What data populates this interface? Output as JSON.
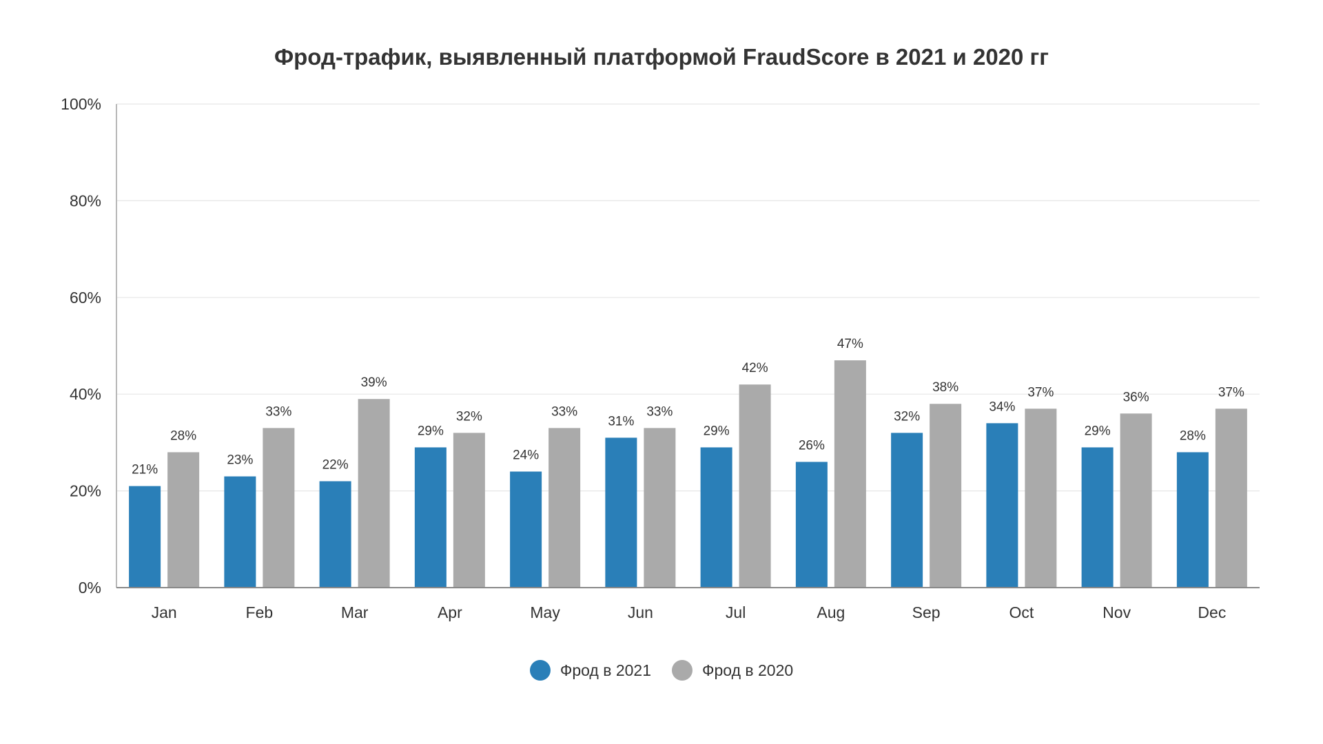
{
  "chart_data": {
    "type": "bar",
    "title": "Фрод-трафик, выявленный платформой FraudScore в 2021 и 2020 гг",
    "xlabel": "",
    "ylabel": "",
    "categories": [
      "Jan",
      "Feb",
      "Mar",
      "Apr",
      "May",
      "Jun",
      "Jul",
      "Aug",
      "Sep",
      "Oct",
      "Nov",
      "Dec"
    ],
    "series": [
      {
        "name": "Фрод в 2021",
        "color": "#2a7fb8",
        "values": [
          21,
          23,
          22,
          29,
          24,
          31,
          29,
          26,
          32,
          34,
          29,
          28
        ],
        "labels": [
          "21%",
          "23%",
          "22%",
          "29%",
          "24%",
          "31%",
          "29%",
          "26%",
          "32%",
          "34%",
          "29%",
          "28%"
        ]
      },
      {
        "name": "Фрод в 2020",
        "color": "#aaaaaa",
        "values": [
          28,
          33,
          39,
          32,
          33,
          33,
          42,
          47,
          38,
          37,
          36,
          37
        ],
        "labels": [
          "28%",
          "33%",
          "39%",
          "32%",
          "33%",
          "33%",
          "42%",
          "47%",
          "38%",
          "37%",
          "36%",
          "37%"
        ]
      }
    ],
    "ylim": [
      0,
      100
    ],
    "yticks": [
      "0%",
      "20%",
      "40%",
      "60%",
      "80%",
      "100%"
    ],
    "ytick_values": [
      0,
      20,
      40,
      60,
      80,
      100
    ],
    "grid": true,
    "legend_position": "bottom-center"
  }
}
